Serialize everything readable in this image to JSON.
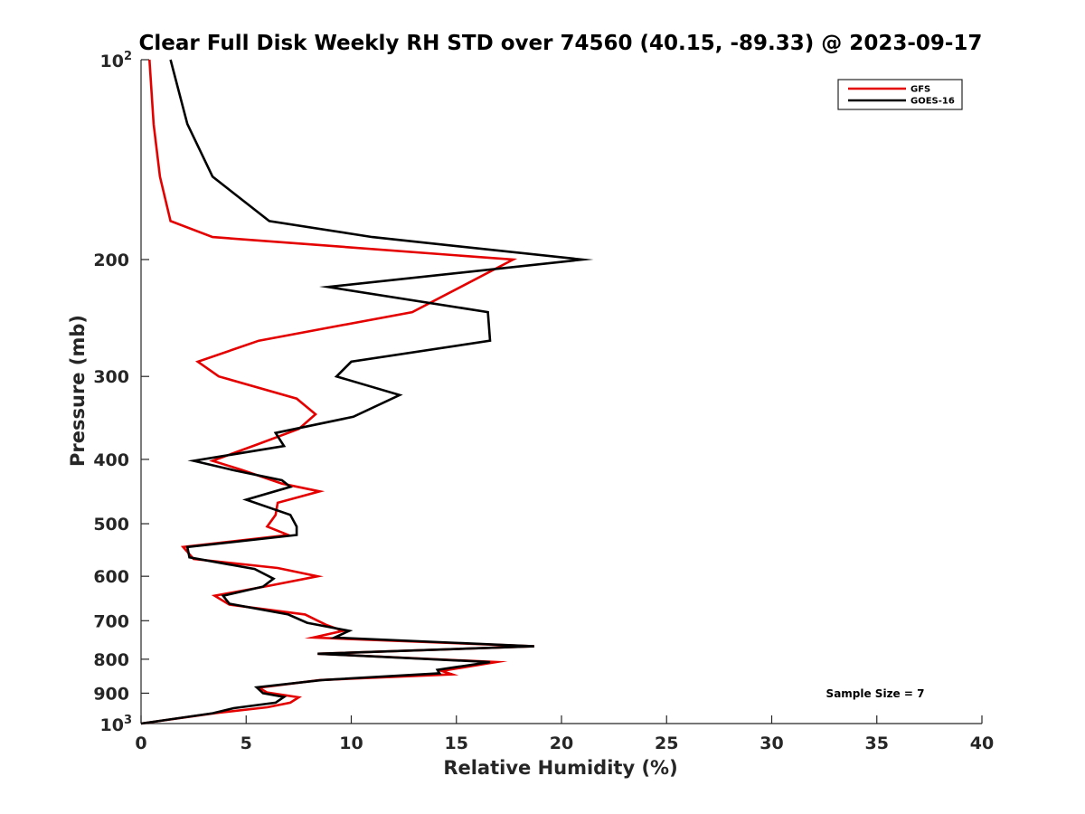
{
  "chart_data": {
    "type": "line",
    "title": "Clear Full Disk Weekly RH STD over 74560 (40.15, -89.33) @ 2023-09-17",
    "xlabel": "Relative Humidity (%)",
    "ylabel": "Pressure (mb)",
    "xlim": [
      0,
      40
    ],
    "ylim": [
      100,
      1000
    ],
    "yscale": "log",
    "y_reversed": true,
    "xticks": [
      0,
      5,
      10,
      15,
      20,
      25,
      30,
      35,
      40
    ],
    "yticks": [
      {
        "value": 100,
        "label": "10",
        "sup": "2"
      },
      {
        "value": 200,
        "label": "200",
        "sup": ""
      },
      {
        "value": 300,
        "label": "300",
        "sup": ""
      },
      {
        "value": 400,
        "label": "400",
        "sup": ""
      },
      {
        "value": 500,
        "label": "500",
        "sup": ""
      },
      {
        "value": 600,
        "label": "600",
        "sup": ""
      },
      {
        "value": 700,
        "label": "700",
        "sup": ""
      },
      {
        "value": 800,
        "label": "800",
        "sup": ""
      },
      {
        "value": 900,
        "label": "900",
        "sup": ""
      },
      {
        "value": 1000,
        "label": "10",
        "sup": "3"
      }
    ],
    "grid": false,
    "legend_position": "top-right",
    "annotation": "Sample Size = 7",
    "series": [
      {
        "name": "GFS",
        "color": "#e50000",
        "points": [
          [
            0.4,
            100
          ],
          [
            0.6,
            125
          ],
          [
            0.9,
            150
          ],
          [
            1.4,
            175
          ],
          [
            3.4,
            185
          ],
          [
            17.7,
            200
          ],
          [
            15.2,
            220
          ],
          [
            12.9,
            240
          ],
          [
            5.6,
            265
          ],
          [
            2.7,
            285
          ],
          [
            3.7,
            300
          ],
          [
            7.4,
            324
          ],
          [
            8.3,
            342
          ],
          [
            7.5,
            360
          ],
          [
            5.5,
            380
          ],
          [
            3.4,
            402
          ],
          [
            4.8,
            415
          ],
          [
            6.7,
            435
          ],
          [
            8.5,
            447
          ],
          [
            6.5,
            465
          ],
          [
            6.4,
            485
          ],
          [
            6.0,
            505
          ],
          [
            7.0,
            520
          ],
          [
            2.0,
            542
          ],
          [
            2.5,
            565
          ],
          [
            6.5,
            583
          ],
          [
            8.4,
            600
          ],
          [
            6.1,
            620
          ],
          [
            3.5,
            642
          ],
          [
            4.2,
            662
          ],
          [
            7.8,
            685
          ],
          [
            8.8,
            710
          ],
          [
            9.6,
            725
          ],
          [
            8.2,
            742
          ],
          [
            18.7,
            765
          ],
          [
            8.4,
            785
          ],
          [
            16.9,
            808
          ],
          [
            14.3,
            833
          ],
          [
            14.8,
            843
          ],
          [
            8.5,
            860
          ],
          [
            5.6,
            883
          ],
          [
            6.0,
            898
          ],
          [
            7.5,
            913
          ],
          [
            7.1,
            930
          ],
          [
            6.0,
            945
          ],
          [
            3.5,
            965
          ],
          [
            0.0,
            1000
          ]
        ]
      },
      {
        "name": "GOES-16",
        "color": "#000000",
        "points": [
          [
            1.4,
            100
          ],
          [
            2.2,
            125
          ],
          [
            3.4,
            150
          ],
          [
            6.1,
            175
          ],
          [
            11.0,
            185
          ],
          [
            21.0,
            200
          ],
          [
            8.9,
            220
          ],
          [
            16.5,
            240
          ],
          [
            16.6,
            265
          ],
          [
            10.0,
            285
          ],
          [
            9.3,
            300
          ],
          [
            12.3,
            320
          ],
          [
            10.1,
            345
          ],
          [
            6.4,
            365
          ],
          [
            6.8,
            382
          ],
          [
            2.5,
            402
          ],
          [
            4.5,
            416
          ],
          [
            6.7,
            430
          ],
          [
            7.1,
            440
          ],
          [
            5.0,
            460
          ],
          [
            7.1,
            485
          ],
          [
            7.4,
            505
          ],
          [
            7.4,
            520
          ],
          [
            2.2,
            542
          ],
          [
            2.3,
            562
          ],
          [
            5.4,
            585
          ],
          [
            6.3,
            605
          ],
          [
            5.8,
            622
          ],
          [
            3.9,
            642
          ],
          [
            4.2,
            660
          ],
          [
            7.0,
            685
          ],
          [
            7.9,
            705
          ],
          [
            9.9,
            725
          ],
          [
            9.2,
            742
          ],
          [
            18.7,
            765
          ],
          [
            8.4,
            785
          ],
          [
            16.6,
            808
          ],
          [
            14.1,
            830
          ],
          [
            14.2,
            840
          ],
          [
            8.6,
            860
          ],
          [
            5.5,
            882
          ],
          [
            5.8,
            900
          ],
          [
            6.8,
            912
          ],
          [
            6.4,
            930
          ],
          [
            4.4,
            948
          ],
          [
            3.4,
            965
          ],
          [
            0.0,
            1000
          ]
        ]
      }
    ]
  }
}
